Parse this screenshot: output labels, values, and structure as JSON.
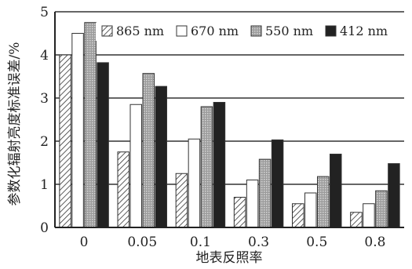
{
  "chart_data": {
    "type": "bar",
    "title": "",
    "xlabel": "地表反照率",
    "ylabel": "参数化辐射亮度标准误差/%",
    "ylim": [
      0,
      5
    ],
    "yticks": [
      "0",
      "1",
      "2",
      "3",
      "4",
      "5"
    ],
    "grid": "horizontal",
    "legend_position": "top-right",
    "categories": [
      "0",
      "0.05",
      "0.1",
      "0.3",
      "0.5",
      "0.8"
    ],
    "series": [
      {
        "name": "865 nm",
        "pattern": "hatch",
        "color": "#ffffff",
        "values": [
          4.0,
          1.75,
          1.25,
          0.7,
          0.55,
          0.35
        ]
      },
      {
        "name": "670 nm",
        "pattern": "open",
        "color": "#ffffff",
        "values": [
          4.5,
          2.85,
          2.05,
          1.1,
          0.8,
          0.55
        ]
      },
      {
        "name": "550 nm",
        "pattern": "dots",
        "color": "#aaaaaa",
        "values": [
          4.75,
          3.57,
          2.8,
          1.58,
          1.18,
          0.85
        ]
      },
      {
        "name": "412 nm",
        "pattern": "solid",
        "color": "#222222",
        "values": [
          3.82,
          3.27,
          2.9,
          2.03,
          1.7,
          1.48
        ]
      }
    ]
  }
}
